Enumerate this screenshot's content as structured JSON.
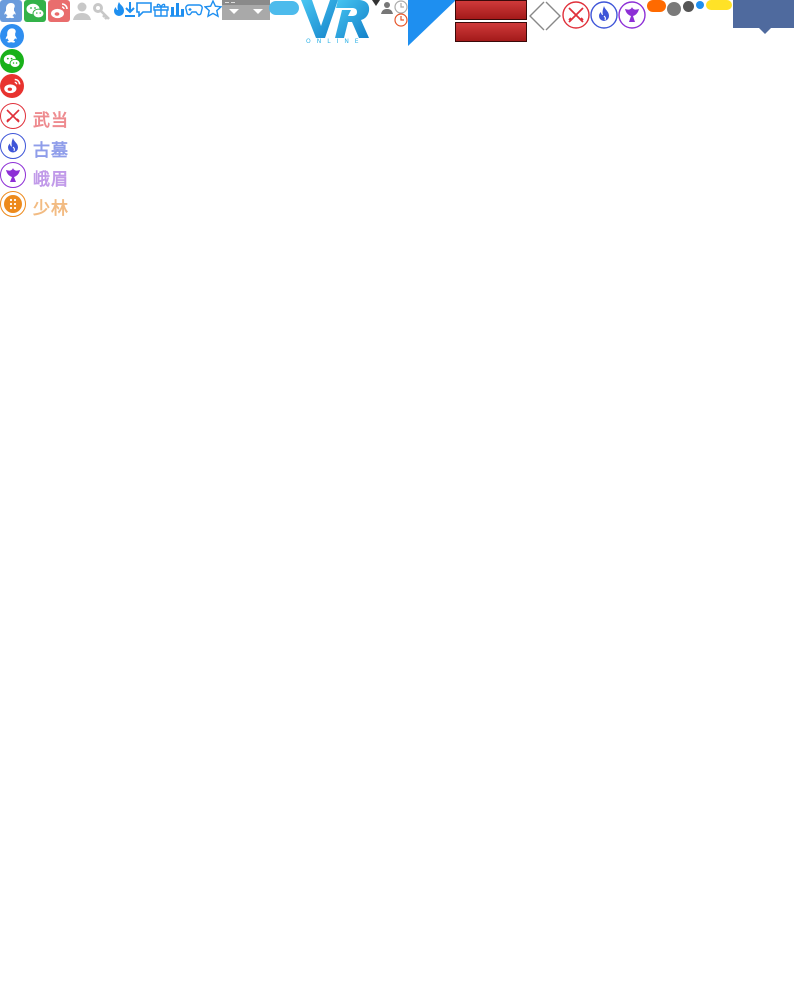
{
  "share": {
    "qq": {
      "icon": "qq-icon",
      "color": "#6a9bdc"
    },
    "wechat": {
      "icon": "wechat-icon",
      "color": "#33b249"
    },
    "weibo": {
      "icon": "weibo-icon",
      "color": "#e96d6d"
    }
  },
  "share_side": {
    "qq": {
      "icon": "qq-icon",
      "color": "#2f8ef0"
    },
    "wechat": {
      "icon": "wechat-icon",
      "color": "#19b11a"
    },
    "weibo": {
      "icon": "weibo-icon",
      "color": "#e8332f"
    }
  },
  "toolbar_icons": [
    "user-icon",
    "key-icon",
    "hot-icon",
    "download-icon",
    "comment-icon",
    "gift-icon",
    "chart-icon",
    "gamepad-icon",
    "star-icon"
  ],
  "logo": {
    "text": "VR",
    "subtitle": "ONLINE",
    "color": "#1aa6e1"
  },
  "sects": [
    {
      "name": "武当",
      "icon": "swords-icon",
      "color": "#e0303a",
      "label_color": "#ee8b8f"
    },
    {
      "name": "古墓",
      "icon": "flame-icon",
      "color": "#3e55d8",
      "label_color": "#8f9dea"
    },
    {
      "name": "峨眉",
      "icon": "phoenix-icon",
      "color": "#8d2fd6",
      "label_color": "#c19ae9"
    },
    {
      "name": "少林",
      "icon": "beads-icon",
      "color": "#ed8a1c",
      "label_color": "#f2bb82"
    }
  ],
  "nav": {
    "prev": "arrow-left-icon",
    "next": "arrow-right-icon"
  },
  "colors": {
    "blue_tab": "#4f6a9e",
    "triangle": "#1e8ff0",
    "red_btn": "#b8262a"
  }
}
